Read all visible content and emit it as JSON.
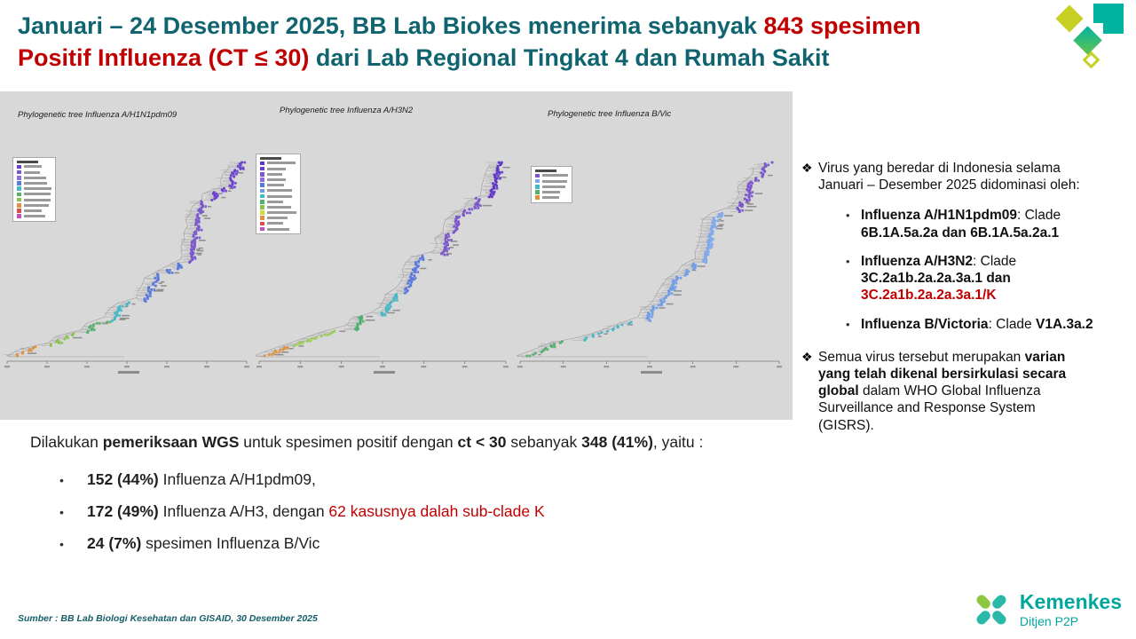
{
  "title": {
    "line1_teal": "Januari – 24 Desember 2025, BB Lab Biokes menerima sebanyak ",
    "line1_red": "843 spesimen",
    "line2_red": "Positif Influenza (CT ≤ 30)",
    "line2_teal": " dari Lab Regional Tingkat 4 dan Rumah Sakit"
  },
  "glyphs": {
    "diamond": "❖",
    "dot": "•"
  },
  "colors": {
    "title_teal": "#0f6470",
    "accent_red": "#c00000",
    "panel_gray": "#d8d8d8",
    "kemenkes_teal": "#00a79d",
    "logo_teal": "#00b3a1",
    "logo_lime": "#c6cf22"
  },
  "trees": [
    {
      "label": "Phylogenetic tree Influenza A/H1N1pdm09",
      "seed": 7,
      "n": 150,
      "segments": [
        {
          "color": "#e09040",
          "frac": 0.05
        },
        {
          "color": "#8bc34a",
          "frac": 0.07
        },
        {
          "color": "#54b06c",
          "frac": 0.06
        },
        {
          "color": "#45b8c8",
          "frac": 0.1
        },
        {
          "color": "#5b79dd",
          "frac": 0.2
        },
        {
          "color": "#7a55cc",
          "frac": 0.32
        },
        {
          "color": "#6a3fd0",
          "frac": 0.2
        }
      ],
      "legend_colors": [
        "#6a3fd0",
        "#7a55cc",
        "#8d6fe0",
        "#5b79dd",
        "#45b8c8",
        "#54b06c",
        "#8bc34a",
        "#e09040",
        "#d84f4f",
        "#c44fc0"
      ]
    },
    {
      "label": "Phylogenetic tree Influenza A/H3N2",
      "seed": 13,
      "n": 158,
      "segments": [
        {
          "color": "#e09040",
          "frac": 0.05
        },
        {
          "color": "#9ccc50",
          "frac": 0.08
        },
        {
          "color": "#4caf6e",
          "frac": 0.08
        },
        {
          "color": "#45b8c8",
          "frac": 0.11
        },
        {
          "color": "#5b79dd",
          "frac": 0.2
        },
        {
          "color": "#7a55cc",
          "frac": 0.3
        },
        {
          "color": "#5f35c8",
          "frac": 0.18
        }
      ],
      "legend_colors": [
        "#5f35c8",
        "#6a3fd0",
        "#7a55cc",
        "#8d6fe0",
        "#5b79dd",
        "#6f9ce8",
        "#45b8c8",
        "#54b06c",
        "#8bc34a",
        "#cddc39",
        "#e09040",
        "#d84f4f",
        "#c44fc0"
      ]
    },
    {
      "label": "Phylogenetic tree Influenza B/Vic",
      "seed": 21,
      "n": 150,
      "segments": [
        {
          "color": "#54b06c",
          "frac": 0.08
        },
        {
          "color": "#45b8c8",
          "frac": 0.1
        },
        {
          "color": "#6f9ce8",
          "frac": 0.3
        },
        {
          "color": "#7fa8ec",
          "frac": 0.26
        },
        {
          "color": "#7a55cc",
          "frac": 0.26
        }
      ],
      "legend_colors": [
        "#7a55cc",
        "#7fa8ec",
        "#45b8c8",
        "#54b06c",
        "#e09040"
      ]
    }
  ],
  "right_panel": {
    "b1": "Virus yang beredar di Indonesia selama Januari – Desember 2025 didominasi oleh:",
    "sub1": {
      "name": "Influenza A/H1N1pdm09",
      "sep": ": Clade ",
      "clade_bold": "6B.1A.5a.2a dan 6B.1A.5a.2a.1"
    },
    "sub2": {
      "name": "Influenza A/H3N2",
      "sep": ": Clade ",
      "clade_bold": "3C.2a1b.2a.2a.3a.1 dan ",
      "clade_red": "3C.2a1b.2a.2a.3a.1/K"
    },
    "sub3": {
      "name": "Influenza B/Victoria",
      "sep": ": Clade ",
      "clade_bold": "V1A.3a.2"
    },
    "b2": {
      "s1": "Semua virus tersebut merupakan ",
      "s2_bold": "varian yang telah dikenal bersirkulasi secara global",
      "s3": " dalam WHO Global Influenza Surveillance and Response System (GISRS)."
    }
  },
  "wgs": {
    "intro": {
      "s1": "Dilakukan ",
      "s2_bold": "pemeriksaan WGS",
      "s3": " untuk spesimen positif dengan ",
      "s4_bold": "ct < 30",
      "s5": " sebanyak ",
      "s6_bold": "348 (41%)",
      "s7": ", yaitu :"
    },
    "items": [
      {
        "lead_bold": "152 (44%)",
        "rest": " Influenza A/H1pdm09,"
      },
      {
        "lead_bold": "172 (49%)",
        "rest": " Influenza A/H3, dengan ",
        "rest_red": "62 kasusnya dalah sub-clade K"
      },
      {
        "lead_bold": "24 (7%)",
        "rest": " spesimen Influenza B/Vic"
      }
    ]
  },
  "footer": {
    "source": "Sumber : BB Lab Biologi Kesehatan dan GISAID, 30 Desember 2025",
    "kemenkes_name": "Kemenkes",
    "kemenkes_subtitle": "Ditjen P2P"
  }
}
